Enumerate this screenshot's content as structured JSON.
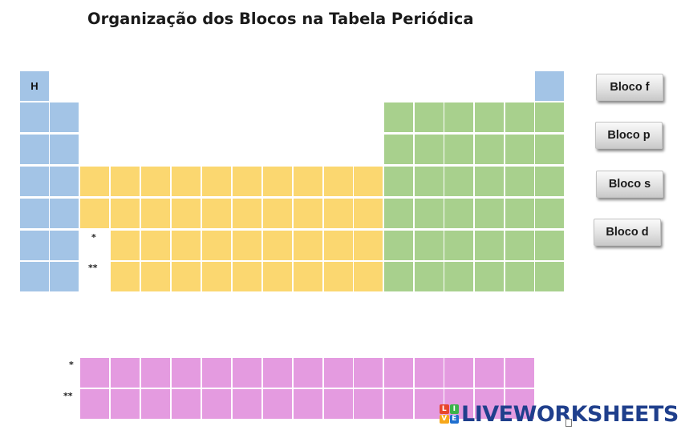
{
  "title": "Organização dos Blocos na Tabela Periódica",
  "hydrogen_symbol": "H",
  "markers": {
    "lanthanide_main": "*",
    "actinide_main": "**",
    "lanthanide_row": "*",
    "actinide_row": "**"
  },
  "buttons": [
    {
      "id": "bloco-f",
      "label": "Bloco f"
    },
    {
      "id": "bloco-p",
      "label": "Bloco p"
    },
    {
      "id": "bloco-s",
      "label": "Bloco s"
    },
    {
      "id": "bloco-d",
      "label": "Bloco d"
    }
  ],
  "logo": {
    "text": "LIVEWORKSHEETS",
    "badge_letters": [
      "L",
      "I",
      "V",
      "E"
    ],
    "badge_colors": [
      "#e8452c",
      "#3bb34a",
      "#f7a81b",
      "#1f6fcf"
    ],
    "text_color": "#1f3f8c"
  },
  "colors": {
    "s_block": "#a3c4e6",
    "d_block": "#fbd770",
    "p_block": "#a8d08d",
    "f_block": "#e49be0"
  }
}
